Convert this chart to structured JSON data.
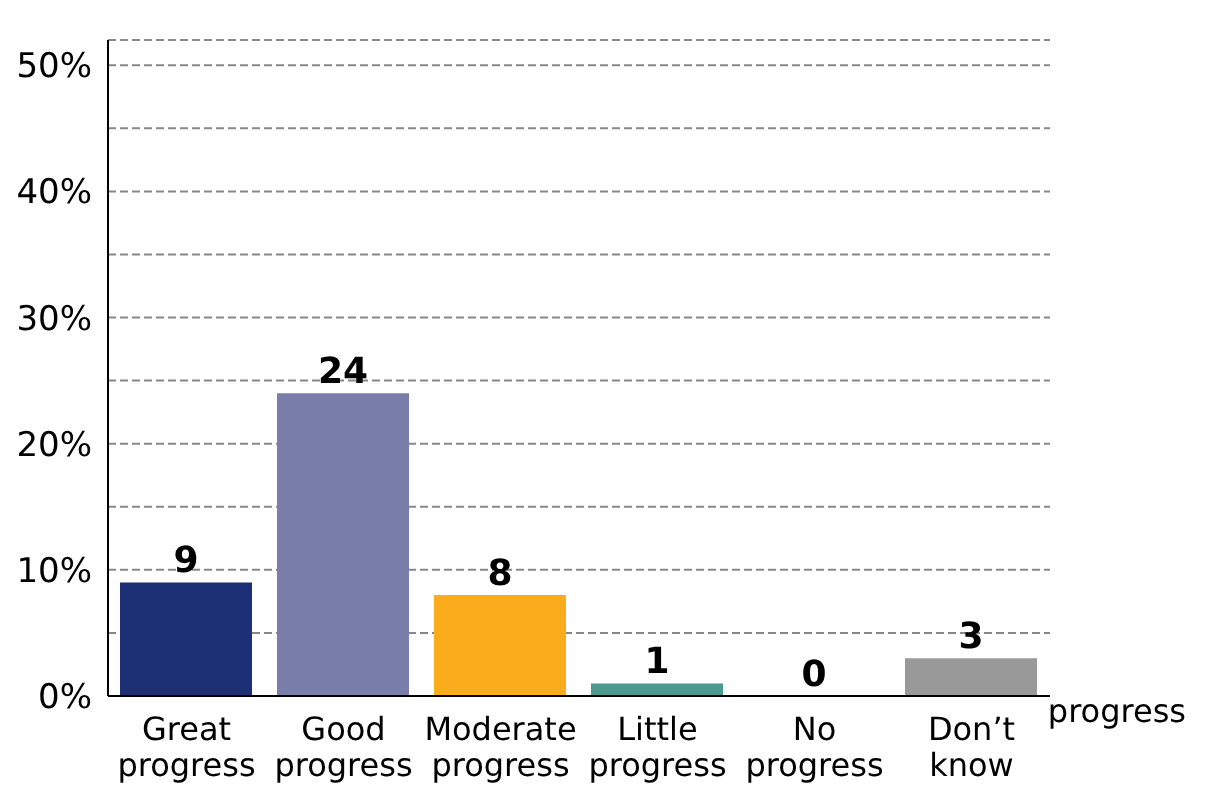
{
  "chart_data": {
    "type": "bar",
    "categories": [
      "Great progress",
      "Good progress",
      "Moderate progress",
      "Little progress",
      "No progress",
      "Don’t know"
    ],
    "values": [
      9,
      24,
      8,
      1,
      0,
      3
    ],
    "colors": [
      "#1c2e74",
      "#7a7eaa",
      "#fbac1c",
      "#4a9a90",
      "#4a9a90",
      "#999999"
    ],
    "ylim": [
      0,
      52
    ],
    "yticks": [
      {
        "value": 0,
        "label": "0%"
      },
      {
        "value": 5,
        "label": null
      },
      {
        "value": 10,
        "label": "10%"
      },
      {
        "value": 15,
        "label": null
      },
      {
        "value": 20,
        "label": "20%"
      },
      {
        "value": 25,
        "label": null
      },
      {
        "value": 30,
        "label": "30%"
      },
      {
        "value": 35,
        "label": null
      },
      {
        "value": 40,
        "label": "40%"
      },
      {
        "value": 45,
        "label": null
      },
      {
        "value": 50,
        "label": "50%"
      }
    ],
    "grid": "y",
    "data_labels": true,
    "annotations": [
      "progress"
    ]
  }
}
